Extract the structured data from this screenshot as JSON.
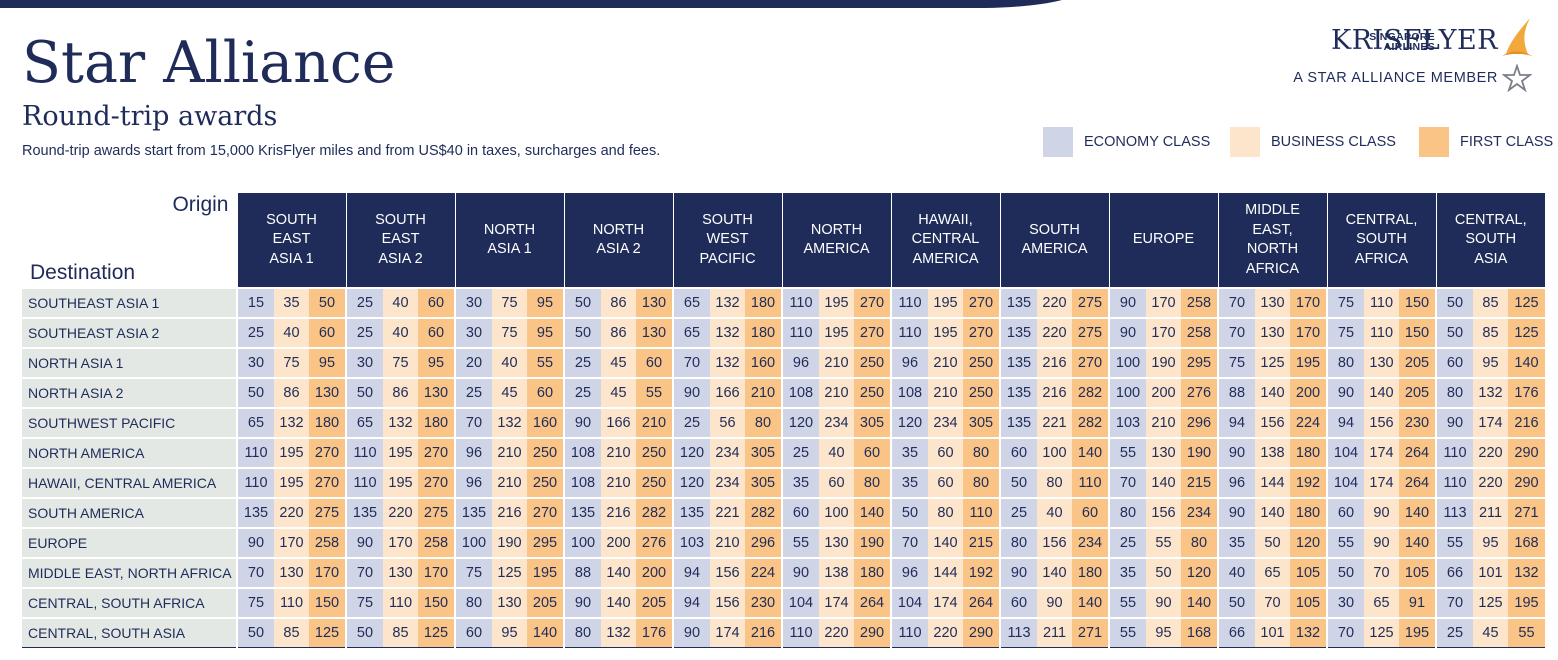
{
  "header": {
    "title": "Star Alliance",
    "subtitle": "Round-trip awards",
    "tagline": "Round-trip awards start from 15,000 KrisFlyer miles and from US$40 in taxes, surcharges and fees."
  },
  "logo": {
    "airline_line1": "SINGAPORE",
    "airline_line2": "AIRLINES",
    "brand": "KRISFLYER",
    "member_text": "A STAR ALLIANCE MEMBER",
    "bird_icon": "bird-icon",
    "star_icon": "star-alliance-icon"
  },
  "legend": [
    {
      "label": "ECONOMY CLASS",
      "color": "#cfd4e6"
    },
    {
      "label": "BUSINESS CLASS",
      "color": "#fce5cb"
    },
    {
      "label": "FIRST CLASS",
      "color": "#f9c486"
    }
  ],
  "colors": {
    "navy": "#1f2c5a",
    "economy": "#cfd4e6",
    "business": "#fce5cb",
    "first": "#f9c486",
    "destination_bg": "#e3e8e5"
  },
  "table": {
    "origin_label": "Origin",
    "destination_label": "Destination",
    "origins": [
      [
        "SOUTH",
        "EAST",
        "ASIA 1"
      ],
      [
        "SOUTH",
        "EAST",
        "ASIA 2"
      ],
      [
        "NORTH",
        "ASIA 1"
      ],
      [
        "NORTH",
        "ASIA 2"
      ],
      [
        "SOUTH",
        "WEST",
        "PACIFIC"
      ],
      [
        "NORTH",
        "AMERICA"
      ],
      [
        "HAWAII,",
        "CENTRAL",
        "AMERICA"
      ],
      [
        "SOUTH",
        "AMERICA"
      ],
      [
        "EUROPE"
      ],
      [
        "MIDDLE",
        "EAST,",
        "NORTH",
        "AFRICA"
      ],
      [
        "CENTRAL,",
        "SOUTH",
        "AFRICA"
      ],
      [
        "CENTRAL,",
        "SOUTH",
        "ASIA"
      ]
    ],
    "rows": [
      {
        "destination": "SOUTHEAST ASIA 1",
        "values": [
          [
            15,
            35,
            50
          ],
          [
            25,
            40,
            60
          ],
          [
            30,
            75,
            95
          ],
          [
            50,
            86,
            130
          ],
          [
            65,
            132,
            180
          ],
          [
            110,
            195,
            270
          ],
          [
            110,
            195,
            270
          ],
          [
            135,
            220,
            275
          ],
          [
            90,
            170,
            258
          ],
          [
            70,
            130,
            170
          ],
          [
            75,
            110,
            150
          ],
          [
            50,
            85,
            125
          ]
        ]
      },
      {
        "destination": "SOUTHEAST ASIA 2",
        "values": [
          [
            25,
            40,
            60
          ],
          [
            25,
            40,
            60
          ],
          [
            30,
            75,
            95
          ],
          [
            50,
            86,
            130
          ],
          [
            65,
            132,
            180
          ],
          [
            110,
            195,
            270
          ],
          [
            110,
            195,
            270
          ],
          [
            135,
            220,
            275
          ],
          [
            90,
            170,
            258
          ],
          [
            70,
            130,
            170
          ],
          [
            75,
            110,
            150
          ],
          [
            50,
            85,
            125
          ]
        ]
      },
      {
        "destination": "NORTH ASIA 1",
        "values": [
          [
            30,
            75,
            95
          ],
          [
            30,
            75,
            95
          ],
          [
            20,
            40,
            55
          ],
          [
            25,
            45,
            60
          ],
          [
            70,
            132,
            160
          ],
          [
            96,
            210,
            250
          ],
          [
            96,
            210,
            250
          ],
          [
            135,
            216,
            270
          ],
          [
            100,
            190,
            295
          ],
          [
            75,
            125,
            195
          ],
          [
            80,
            130,
            205
          ],
          [
            60,
            95,
            140
          ]
        ]
      },
      {
        "destination": "NORTH ASIA 2",
        "values": [
          [
            50,
            86,
            130
          ],
          [
            50,
            86,
            130
          ],
          [
            25,
            45,
            60
          ],
          [
            25,
            45,
            55
          ],
          [
            90,
            166,
            210
          ],
          [
            108,
            210,
            250
          ],
          [
            108,
            210,
            250
          ],
          [
            135,
            216,
            282
          ],
          [
            100,
            200,
            276
          ],
          [
            88,
            140,
            200
          ],
          [
            90,
            140,
            205
          ],
          [
            80,
            132,
            176
          ]
        ]
      },
      {
        "destination": "SOUTHWEST PACIFIC",
        "values": [
          [
            65,
            132,
            180
          ],
          [
            65,
            132,
            180
          ],
          [
            70,
            132,
            160
          ],
          [
            90,
            166,
            210
          ],
          [
            25,
            56,
            80
          ],
          [
            120,
            234,
            305
          ],
          [
            120,
            234,
            305
          ],
          [
            135,
            221,
            282
          ],
          [
            103,
            210,
            296
          ],
          [
            94,
            156,
            224
          ],
          [
            94,
            156,
            230
          ],
          [
            90,
            174,
            216
          ]
        ]
      },
      {
        "destination": "NORTH AMERICA",
        "values": [
          [
            110,
            195,
            270
          ],
          [
            110,
            195,
            270
          ],
          [
            96,
            210,
            250
          ],
          [
            108,
            210,
            250
          ],
          [
            120,
            234,
            305
          ],
          [
            25,
            40,
            60
          ],
          [
            35,
            60,
            80
          ],
          [
            60,
            100,
            140
          ],
          [
            55,
            130,
            190
          ],
          [
            90,
            138,
            180
          ],
          [
            104,
            174,
            264
          ],
          [
            110,
            220,
            290
          ]
        ]
      },
      {
        "destination": "HAWAII, CENTRAL AMERICA",
        "values": [
          [
            110,
            195,
            270
          ],
          [
            110,
            195,
            270
          ],
          [
            96,
            210,
            250
          ],
          [
            108,
            210,
            250
          ],
          [
            120,
            234,
            305
          ],
          [
            35,
            60,
            80
          ],
          [
            35,
            60,
            80
          ],
          [
            50,
            80,
            110
          ],
          [
            70,
            140,
            215
          ],
          [
            96,
            144,
            192
          ],
          [
            104,
            174,
            264
          ],
          [
            110,
            220,
            290
          ]
        ]
      },
      {
        "destination": "SOUTH AMERICA",
        "values": [
          [
            135,
            220,
            275
          ],
          [
            135,
            220,
            275
          ],
          [
            135,
            216,
            270
          ],
          [
            135,
            216,
            282
          ],
          [
            135,
            221,
            282
          ],
          [
            60,
            100,
            140
          ],
          [
            50,
            80,
            110
          ],
          [
            25,
            40,
            60
          ],
          [
            80,
            156,
            234
          ],
          [
            90,
            140,
            180
          ],
          [
            60,
            90,
            140
          ],
          [
            113,
            211,
            271
          ]
        ]
      },
      {
        "destination": "EUROPE",
        "values": [
          [
            90,
            170,
            258
          ],
          [
            90,
            170,
            258
          ],
          [
            100,
            190,
            295
          ],
          [
            100,
            200,
            276
          ],
          [
            103,
            210,
            296
          ],
          [
            55,
            130,
            190
          ],
          [
            70,
            140,
            215
          ],
          [
            80,
            156,
            234
          ],
          [
            25,
            55,
            80
          ],
          [
            35,
            50,
            120
          ],
          [
            55,
            90,
            140
          ],
          [
            55,
            95,
            168
          ]
        ]
      },
      {
        "destination": "MIDDLE EAST, NORTH AFRICA",
        "values": [
          [
            70,
            130,
            170
          ],
          [
            70,
            130,
            170
          ],
          [
            75,
            125,
            195
          ],
          [
            88,
            140,
            200
          ],
          [
            94,
            156,
            224
          ],
          [
            90,
            138,
            180
          ],
          [
            96,
            144,
            192
          ],
          [
            90,
            140,
            180
          ],
          [
            35,
            50,
            120
          ],
          [
            40,
            65,
            105
          ],
          [
            50,
            70,
            105
          ],
          [
            66,
            101,
            132
          ]
        ]
      },
      {
        "destination": "CENTRAL, SOUTH AFRICA",
        "values": [
          [
            75,
            110,
            150
          ],
          [
            75,
            110,
            150
          ],
          [
            80,
            130,
            205
          ],
          [
            90,
            140,
            205
          ],
          [
            94,
            156,
            230
          ],
          [
            104,
            174,
            264
          ],
          [
            104,
            174,
            264
          ],
          [
            60,
            90,
            140
          ],
          [
            55,
            90,
            140
          ],
          [
            50,
            70,
            105
          ],
          [
            30,
            65,
            91
          ],
          [
            70,
            125,
            195
          ]
        ]
      },
      {
        "destination": "CENTRAL, SOUTH ASIA",
        "values": [
          [
            50,
            85,
            125
          ],
          [
            50,
            85,
            125
          ],
          [
            60,
            95,
            140
          ],
          [
            80,
            132,
            176
          ],
          [
            90,
            174,
            216
          ],
          [
            110,
            220,
            290
          ],
          [
            110,
            220,
            290
          ],
          [
            113,
            211,
            271
          ],
          [
            55,
            95,
            168
          ],
          [
            66,
            101,
            132
          ],
          [
            70,
            125,
            195
          ],
          [
            25,
            45,
            55
          ]
        ]
      }
    ]
  }
}
